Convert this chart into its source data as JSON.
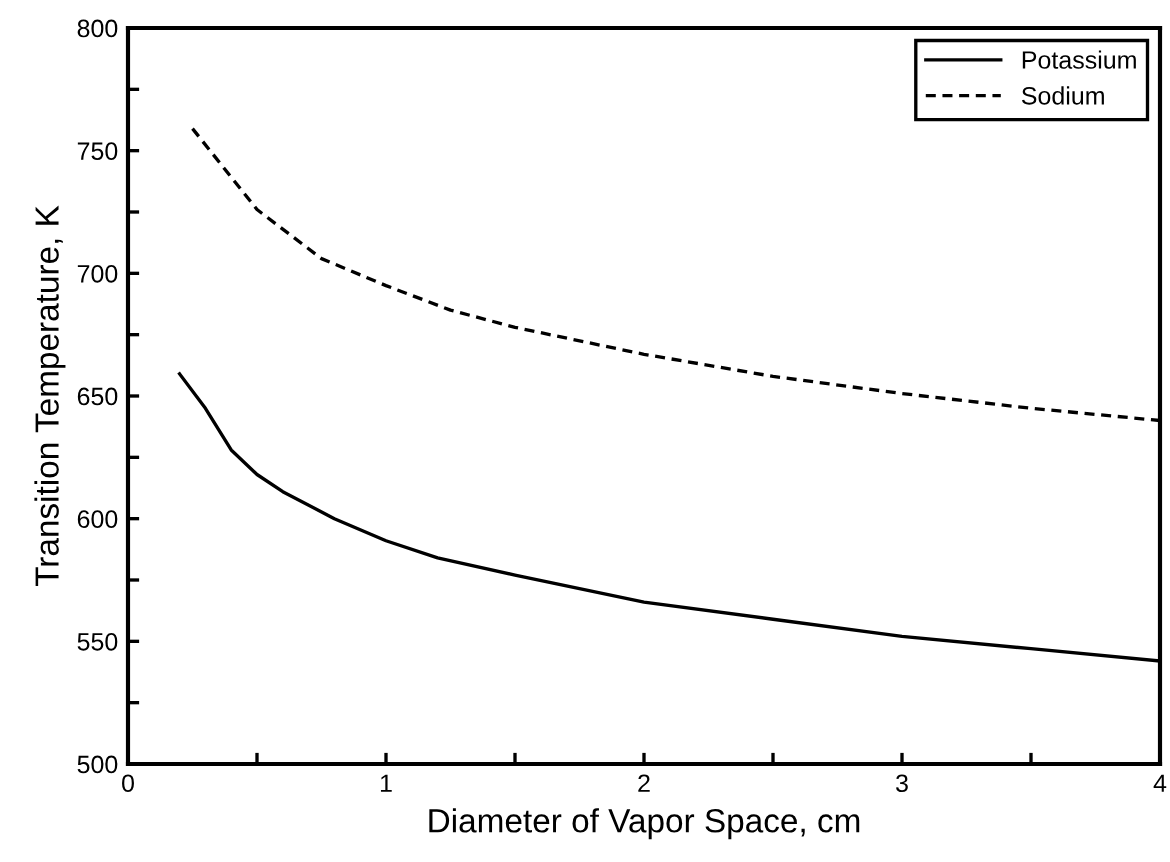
{
  "chart_data": {
    "type": "line",
    "xlabel": "Diameter of Vapor Space, cm",
    "ylabel": "Transition Temperature, K",
    "xlim": [
      0,
      4
    ],
    "ylim": [
      500,
      800
    ],
    "xticks": [
      0,
      {
        "value": 0.5,
        "label": null
      },
      1,
      {
        "value": 1.5,
        "label": null
      },
      2,
      {
        "value": 2.5,
        "label": null
      },
      3,
      {
        "value": 3.5,
        "label": null
      },
      4
    ],
    "yticks": [
      500,
      {
        "value": 525,
        "label": null
      },
      550,
      {
        "value": 575,
        "label": null
      },
      600,
      {
        "value": 625,
        "label": null
      },
      650,
      {
        "value": 675,
        "label": null
      },
      700,
      {
        "value": 725,
        "label": null
      },
      750,
      {
        "value": 775,
        "label": null
      },
      800
    ],
    "legend": "top right",
    "grid": false,
    "series": [
      {
        "name": "Potassium",
        "color": "#000000",
        "line_style": "solid",
        "x": [
          0.2,
          0.3,
          0.4,
          0.5,
          0.6,
          0.8,
          1.0,
          1.2,
          1.5,
          2.0,
          2.5,
          3.0,
          3.5,
          4.0
        ],
        "values": [
          659,
          645,
          628,
          618,
          611,
          600,
          591,
          584,
          577,
          566,
          559,
          552,
          547,
          542
        ]
      },
      {
        "name": "Sodium",
        "color": "#000000",
        "line_style": "dashed",
        "x": [
          0.25,
          0.5,
          0.75,
          1.0,
          1.25,
          1.5,
          2.0,
          2.5,
          3.0,
          3.5,
          4.0
        ],
        "values": [
          759,
          726,
          706,
          695,
          685,
          678,
          667,
          658,
          651,
          645,
          640
        ]
      }
    ]
  }
}
